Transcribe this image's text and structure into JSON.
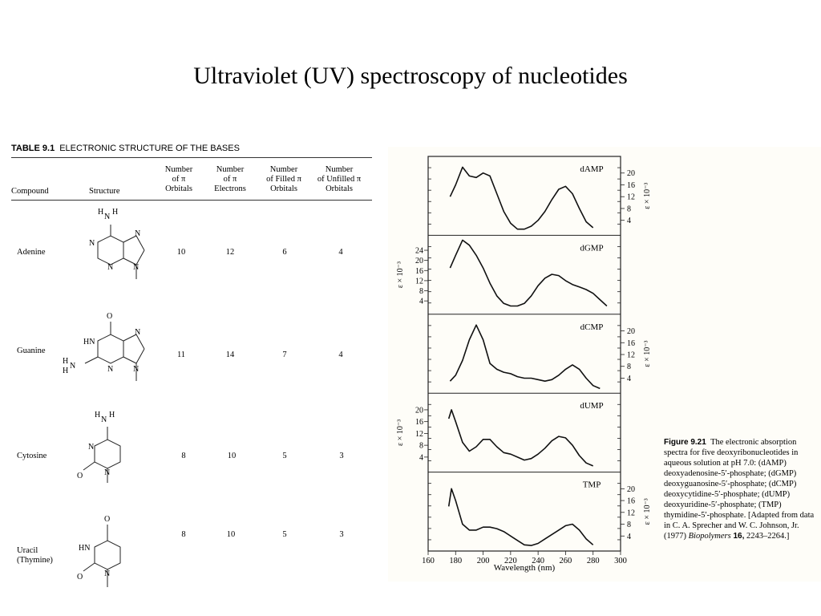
{
  "slide": {
    "title": "Ultraviolet (UV) spectroscopy of nucleotides"
  },
  "table": {
    "number": "TABLE 9.1",
    "title": "ELECTRONIC STRUCTURE OF THE BASES",
    "headers": [
      "Compound",
      "Structure",
      "Number\nof π\nOrbitals",
      "Number\nof π\nElectrons",
      "Number\nof Filled π\nOrbitals",
      "Number\nof Unfilled π\nOrbitals"
    ],
    "rows": [
      {
        "compound": "Adenine",
        "orbitals": "10",
        "electrons": "12",
        "filled": "6",
        "unfilled": "4"
      },
      {
        "compound": "Guanine",
        "orbitals": "11",
        "electrons": "14",
        "filled": "7",
        "unfilled": "4"
      },
      {
        "compound": "Cytosine",
        "orbitals": "8",
        "electrons": "10",
        "filled": "5",
        "unfilled": "3"
      },
      {
        "compound": "Uracil\n(Thymine)",
        "orbitals": "8",
        "electrons": "10",
        "filled": "5",
        "unfilled": "3"
      }
    ],
    "atom_labels": {
      "nh2": "N",
      "h": "H",
      "n": "N",
      "o": "O",
      "hn": "HN"
    }
  },
  "figure": {
    "caption_label": "Figure 9.21",
    "caption_text": "The electronic absorption spectra for five deoxyribonucleotides in aqueous solution at pH 7.0: (dAMP) deoxyadenosine-5′-phosphate; (dGMP) deoxyguanosine-5′-phosphate; (dCMP) deoxycytidine-5′-phosphate; (dUMP) deoxyuridine-5′-phosphate; (TMP) thymidine-5′-phosphate. [Adapted from data in C. A. Sprecher and W. C. Johnson, Jr. (1977) ",
    "caption_journal": "Biopolymers",
    "caption_volume": " 16,",
    "caption_pages": " 2243–2264.]"
  },
  "chart_data": {
    "type": "line",
    "xlabel": "Wavelength (nm)",
    "xlim": [
      160,
      300
    ],
    "xticks": [
      160,
      180,
      200,
      220,
      240,
      260,
      280,
      300
    ],
    "ylabel": "ε × 10⁻³",
    "panels": [
      {
        "name": "dAMP",
        "axis_side": "right",
        "yticks": [
          4,
          8,
          12,
          16,
          20
        ],
        "ylim": [
          0,
          24
        ],
        "x": [
          176,
          180,
          185,
          190,
          195,
          200,
          205,
          210,
          215,
          220,
          225,
          230,
          235,
          240,
          245,
          250,
          255,
          260,
          265,
          270,
          275,
          280
        ],
        "y": [
          12,
          16,
          22,
          19,
          18.5,
          20,
          19,
          13,
          7,
          3,
          1,
          1,
          2,
          4,
          7,
          11,
          14.5,
          15.5,
          13,
          8,
          3.5,
          1.5
        ]
      },
      {
        "name": "dGMP",
        "axis_side": "left",
        "yticks": [
          4,
          8,
          12,
          16,
          20,
          24
        ],
        "ylim": [
          0,
          28
        ],
        "x": [
          176,
          180,
          185,
          190,
          195,
          200,
          205,
          210,
          215,
          220,
          225,
          230,
          235,
          240,
          245,
          250,
          255,
          260,
          265,
          270,
          275,
          280,
          285,
          290
        ],
        "y": [
          17,
          22,
          28,
          26,
          22,
          17,
          11,
          6,
          3,
          2,
          2,
          3,
          6,
          10,
          13,
          14.5,
          14,
          12,
          10.5,
          9.5,
          8.5,
          7,
          4.5,
          2
        ]
      },
      {
        "name": "dCMP",
        "axis_side": "right",
        "yticks": [
          4,
          8,
          12,
          16,
          20
        ],
        "ylim": [
          0,
          24
        ],
        "x": [
          176,
          180,
          185,
          190,
          195,
          200,
          205,
          210,
          215,
          220,
          225,
          230,
          235,
          240,
          245,
          250,
          255,
          260,
          265,
          270,
          275,
          280,
          285
        ],
        "y": [
          3,
          5,
          10,
          17,
          22,
          17,
          9,
          7,
          6,
          5.5,
          4.5,
          4,
          4,
          3.5,
          3,
          3.5,
          5,
          7,
          8.5,
          7,
          4,
          1.5,
          0.5
        ]
      },
      {
        "name": "dUMP",
        "axis_side": "left",
        "yticks": [
          4,
          8,
          12,
          16,
          20
        ],
        "ylim": [
          0,
          24
        ],
        "x": [
          175,
          177,
          180,
          185,
          190,
          195,
          200,
          205,
          210,
          215,
          220,
          225,
          230,
          235,
          240,
          245,
          250,
          255,
          260,
          265,
          270,
          275,
          280
        ],
        "y": [
          17,
          20,
          16,
          9,
          6,
          7.5,
          10,
          10,
          7.5,
          5.5,
          5,
          4,
          3,
          3.5,
          5,
          7,
          9.5,
          11,
          10.5,
          8,
          4.5,
          2,
          1
        ]
      },
      {
        "name": "TMP",
        "axis_side": "right",
        "yticks": [
          4,
          8,
          12,
          16,
          20
        ],
        "ylim": [
          0,
          24
        ],
        "x": [
          175,
          177,
          180,
          185,
          190,
          195,
          200,
          205,
          210,
          215,
          220,
          225,
          230,
          235,
          240,
          245,
          250,
          255,
          260,
          265,
          270,
          275,
          280
        ],
        "y": [
          14,
          20,
          16,
          8,
          6,
          6,
          7,
          7,
          6.5,
          5.5,
          4,
          2.5,
          1,
          0.8,
          1.5,
          3,
          4.5,
          6,
          7.5,
          8,
          6,
          3,
          1
        ]
      }
    ]
  }
}
